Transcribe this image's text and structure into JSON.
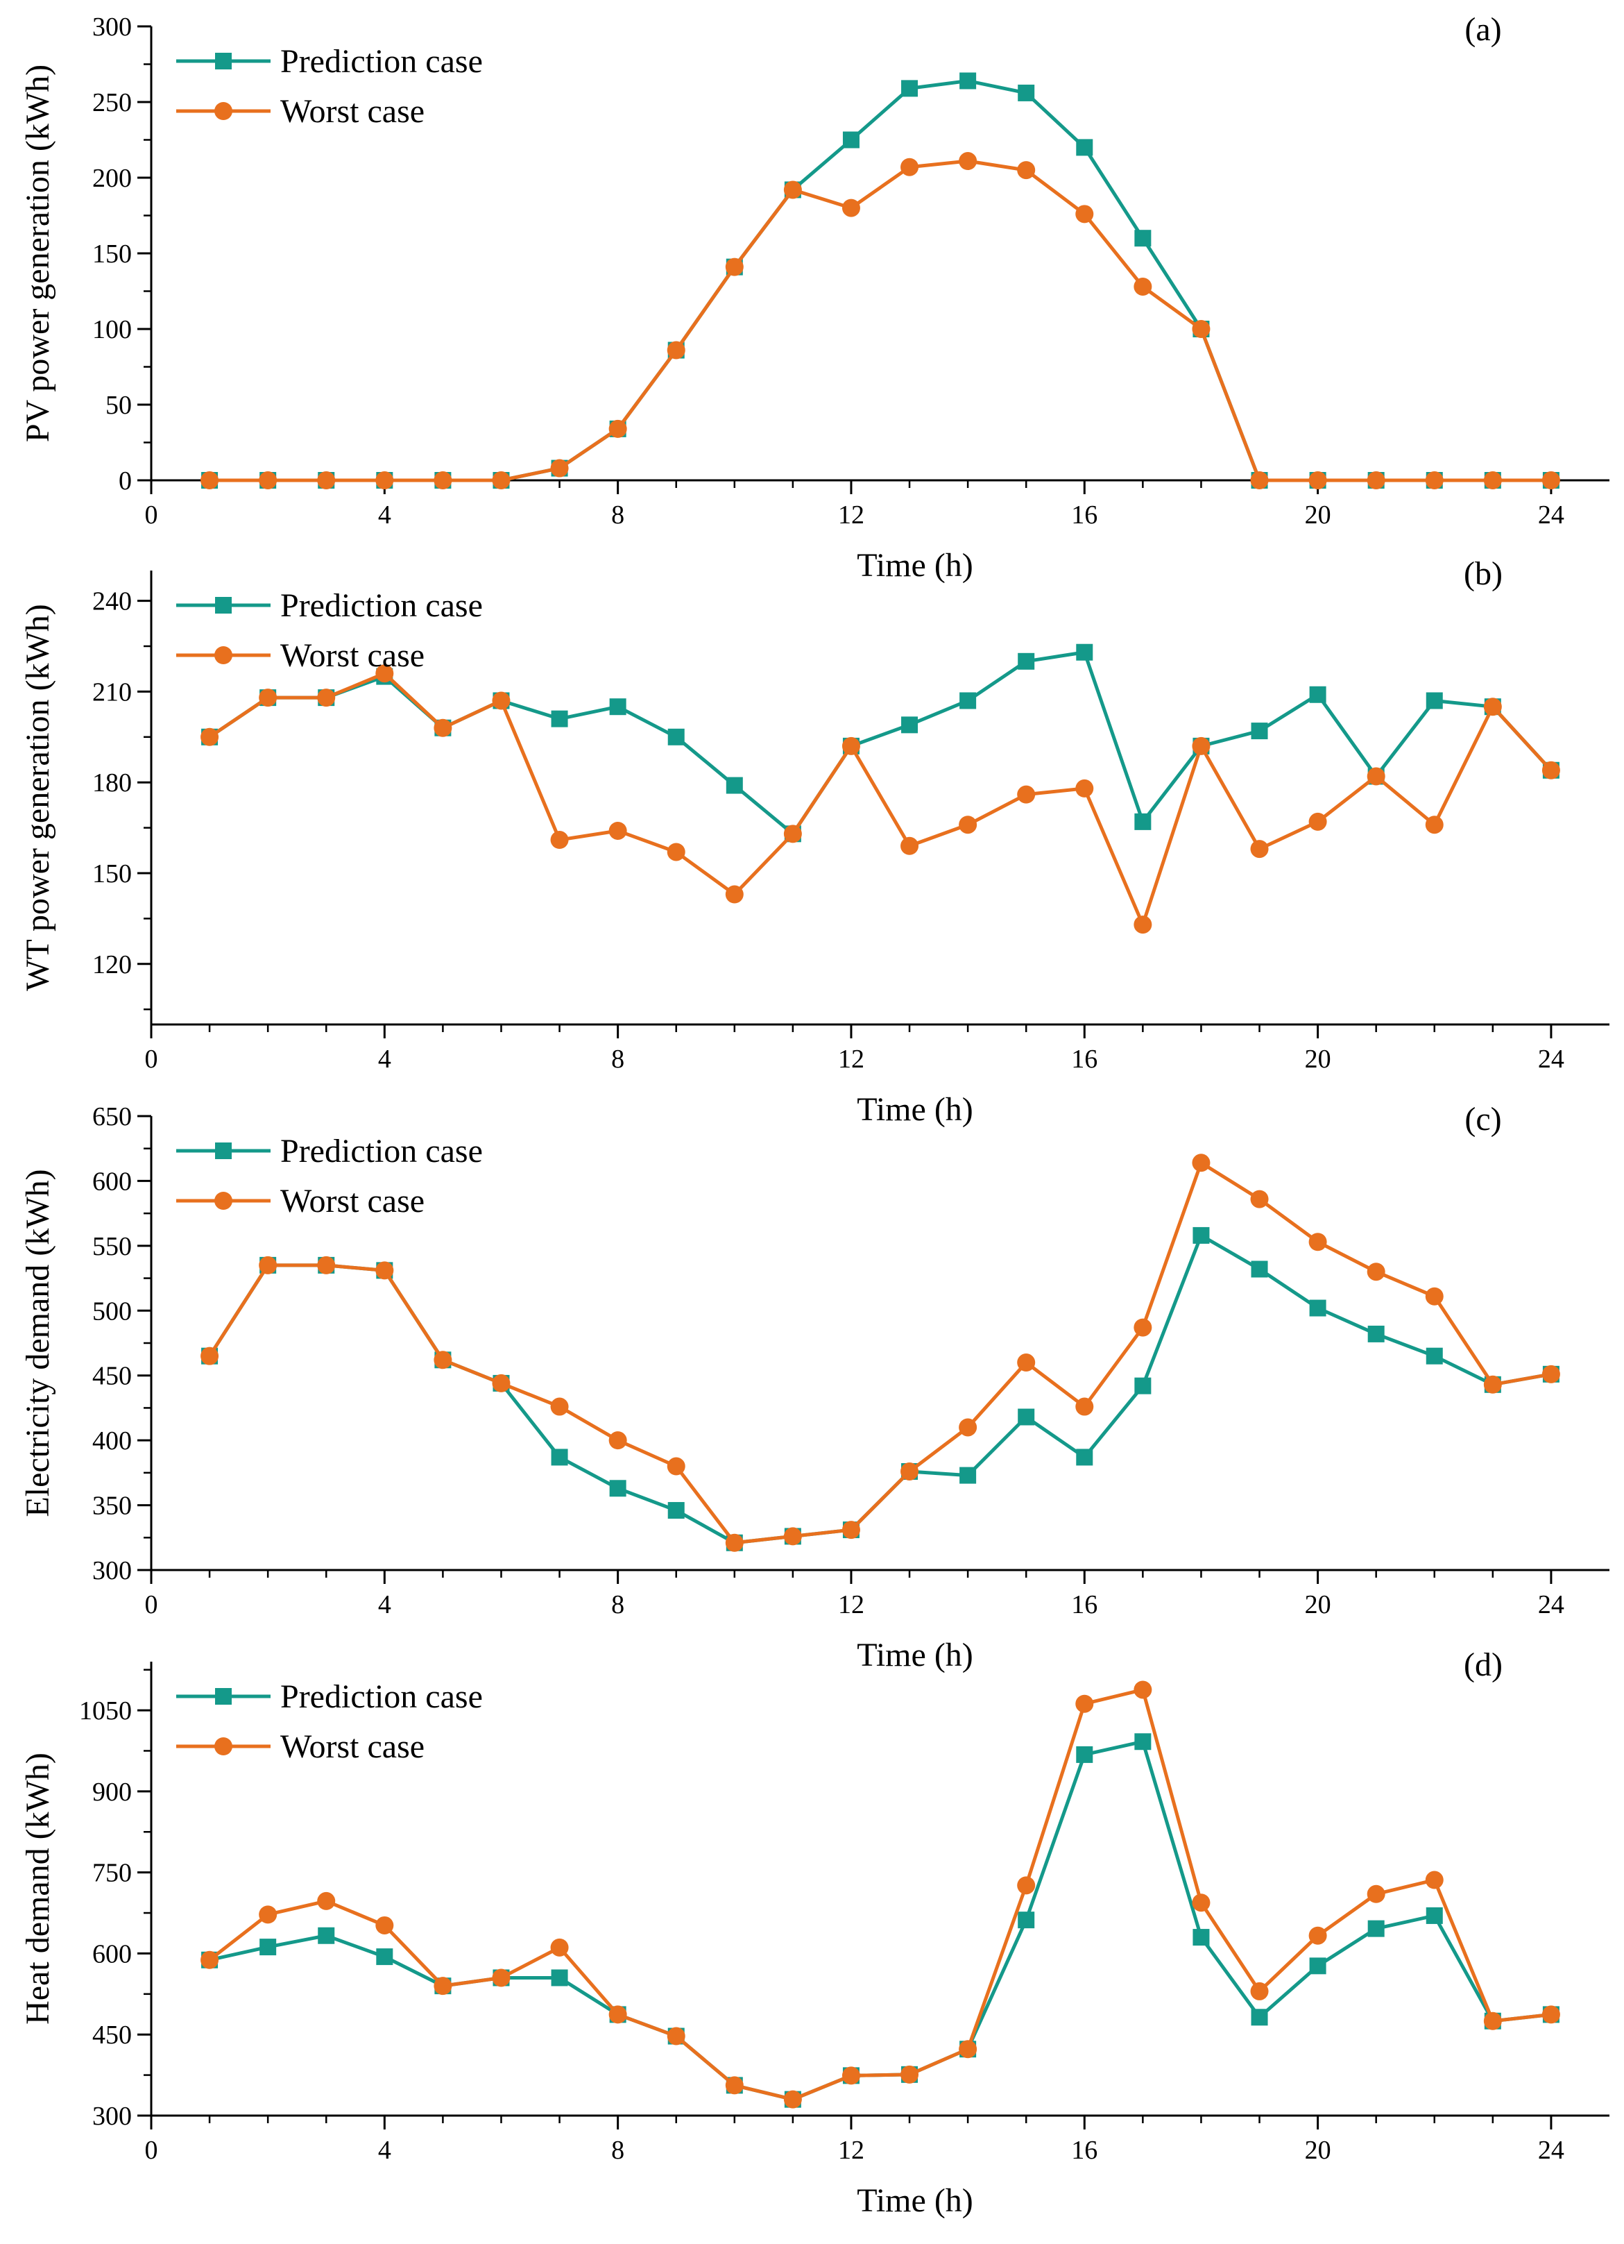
{
  "colors": {
    "prediction": "#14998a",
    "worst": "#e8701e",
    "axis": "#000000"
  },
  "chart_data": [
    {
      "type": "line",
      "panel_label": "(a)",
      "xlabel": "Time (h)",
      "ylabel": "PV power generation (kWh)",
      "xlim": [
        0,
        25
      ],
      "ylim": [
        0,
        300
      ],
      "xticks": [
        0,
        4,
        8,
        12,
        16,
        20,
        24
      ],
      "yticks": [
        0,
        50,
        100,
        150,
        200,
        250,
        300
      ],
      "legend_position": "top-left",
      "x": [
        1,
        2,
        3,
        4,
        5,
        6,
        7,
        8,
        9,
        10,
        11,
        12,
        13,
        14,
        15,
        16,
        17,
        18,
        19,
        20,
        21,
        22,
        23,
        24
      ],
      "series": [
        {
          "name": "Prediction case",
          "marker": "square",
          "values": [
            0,
            0,
            0,
            0,
            0,
            0,
            8,
            34,
            86,
            141,
            192,
            225,
            259,
            264,
            256,
            220,
            160,
            100,
            0,
            0,
            0,
            0,
            0,
            0
          ]
        },
        {
          "name": "Worst case",
          "marker": "circle",
          "values": [
            0,
            0,
            0,
            0,
            0,
            0,
            8,
            34,
            86,
            141,
            192,
            180,
            207,
            211,
            205,
            176,
            128,
            100,
            0,
            0,
            0,
            0,
            0,
            0
          ]
        }
      ]
    },
    {
      "type": "line",
      "panel_label": "(b)",
      "xlabel": "Time (h)",
      "ylabel": "WT power generation (kWh)",
      "xlim": [
        0,
        25
      ],
      "ylim": [
        100,
        250
      ],
      "xticks": [
        0,
        4,
        8,
        12,
        16,
        20,
        24
      ],
      "yticks": [
        120,
        150,
        180,
        210,
        240
      ],
      "legend_position": "top-left",
      "x": [
        1,
        2,
        3,
        4,
        5,
        6,
        7,
        8,
        9,
        10,
        11,
        12,
        13,
        14,
        15,
        16,
        17,
        18,
        19,
        20,
        21,
        22,
        23,
        24
      ],
      "series": [
        {
          "name": "Prediction case",
          "marker": "square",
          "values": [
            195,
            208,
            208,
            215,
            198,
            207,
            201,
            205,
            195,
            179,
            163,
            192,
            199,
            207,
            220,
            223,
            167,
            192,
            197,
            209,
            182,
            207,
            205,
            184
          ]
        },
        {
          "name": "Worst case",
          "marker": "circle",
          "values": [
            195,
            208,
            208,
            216,
            198,
            207,
            161,
            164,
            157,
            143,
            163,
            192,
            159,
            166,
            176,
            178,
            133,
            192,
            158,
            167,
            182,
            166,
            205,
            184
          ]
        }
      ]
    },
    {
      "type": "line",
      "panel_label": "(c)",
      "xlabel": "Time (h)",
      "ylabel": "Electricity demand (kWh)",
      "xlim": [
        0,
        25
      ],
      "ylim": [
        300,
        650
      ],
      "xticks": [
        0,
        4,
        8,
        12,
        16,
        20,
        24
      ],
      "yticks": [
        300,
        350,
        400,
        450,
        500,
        550,
        600,
        650
      ],
      "legend_position": "top-left",
      "x": [
        1,
        2,
        3,
        4,
        5,
        6,
        7,
        8,
        9,
        10,
        11,
        12,
        13,
        14,
        15,
        16,
        17,
        18,
        19,
        20,
        21,
        22,
        23,
        24
      ],
      "series": [
        {
          "name": "Prediction case",
          "marker": "square",
          "values": [
            465,
            535,
            535,
            531,
            462,
            444,
            387,
            363,
            346,
            321,
            326,
            331,
            376,
            373,
            418,
            387,
            442,
            558,
            532,
            502,
            482,
            465,
            443,
            451
          ]
        },
        {
          "name": "Worst case",
          "marker": "circle",
          "values": [
            465,
            535,
            535,
            531,
            462,
            444,
            426,
            400,
            380,
            321,
            326,
            331,
            376,
            410,
            460,
            426,
            487,
            614,
            586,
            553,
            530,
            511,
            443,
            451
          ]
        }
      ]
    },
    {
      "type": "line",
      "panel_label": "(d)",
      "xlabel": "Time (h)",
      "ylabel": "Heat demand (kWh)",
      "xlim": [
        0,
        25
      ],
      "ylim": [
        300,
        1140
      ],
      "xticks": [
        0,
        4,
        8,
        12,
        16,
        20,
        24
      ],
      "yticks": [
        300,
        450,
        600,
        750,
        900,
        1050
      ],
      "legend_position": "top-left",
      "x": [
        1,
        2,
        3,
        4,
        5,
        6,
        7,
        8,
        9,
        10,
        11,
        12,
        13,
        14,
        15,
        16,
        17,
        18,
        19,
        20,
        21,
        22,
        23,
        24
      ],
      "series": [
        {
          "name": "Prediction case",
          "marker": "square",
          "values": [
            588,
            612,
            633,
            594,
            540,
            555,
            555,
            487,
            447,
            356,
            330,
            374,
            376,
            423,
            662,
            968,
            992,
            630,
            482,
            577,
            646,
            670,
            475,
            487
          ]
        },
        {
          "name": "Worst case",
          "marker": "circle",
          "values": [
            588,
            672,
            697,
            652,
            540,
            555,
            611,
            487,
            447,
            356,
            330,
            374,
            376,
            423,
            726,
            1062,
            1088,
            694,
            530,
            633,
            710,
            736,
            475,
            487
          ]
        }
      ]
    }
  ]
}
